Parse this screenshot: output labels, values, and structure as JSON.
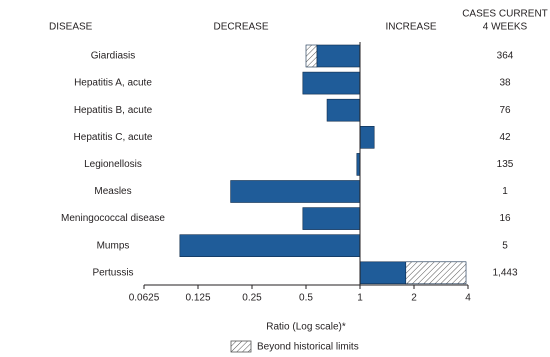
{
  "chart_data": {
    "type": "bar",
    "orientation": "horizontal",
    "header_disease": "DISEASE",
    "header_decrease": "DECREASE",
    "header_increase": "INCREASE",
    "header_cases": [
      "CASES CURRENT",
      "4 WEEKS"
    ],
    "categories": [
      "Giardiasis",
      "Hepatitis A, acute",
      "Hepatitis B, acute",
      "Hepatitis C, acute",
      "Legionellosis",
      "Measles",
      "Meningococcal disease",
      "Mumps",
      "Pertussis"
    ],
    "values": [
      0.5,
      0.48,
      0.655,
      1.2,
      0.96,
      0.19,
      0.48,
      0.099,
      3.9
    ],
    "historical_limits": [
      0.575,
      null,
      null,
      null,
      null,
      null,
      null,
      null,
      1.8
    ],
    "cases": [
      "364",
      "38",
      "76",
      "42",
      "135",
      "1",
      "16",
      "5",
      "1,443"
    ],
    "color": "#1f5c99",
    "edge_color": "#0d2a4a",
    "baseline": 1,
    "log_scale": true,
    "xlim": [
      0.0625,
      4
    ],
    "xticks": [
      0.0625,
      0.125,
      0.25,
      0.5,
      1,
      2,
      4
    ],
    "xlabel": "Ratio (Log scale)*",
    "legend": "Beyond historical limits"
  }
}
